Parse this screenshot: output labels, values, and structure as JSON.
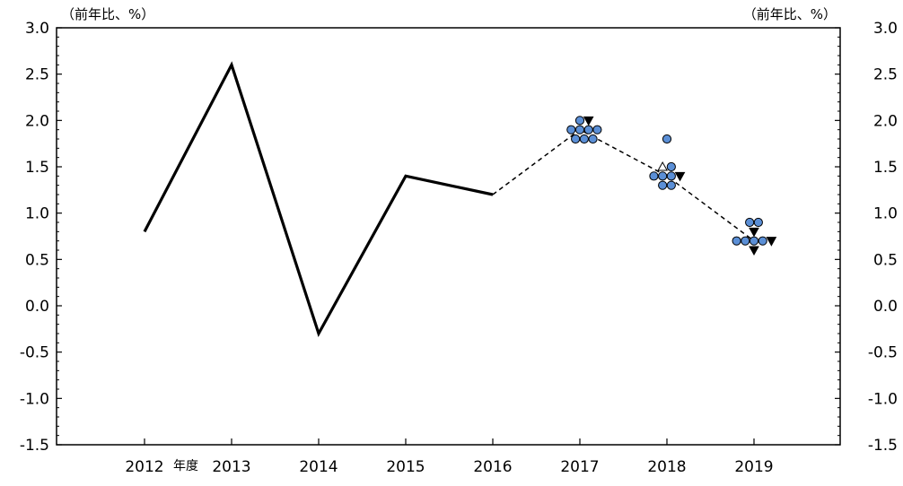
{
  "chart_data": {
    "type": "line",
    "title": "",
    "y_unit_left": "（前年比、%）",
    "y_unit_right": "（前年比、%）",
    "x_unit": "年度",
    "ylim": [
      -1.5,
      3.0
    ],
    "y_ticks": [
      3.0,
      2.5,
      2.0,
      1.5,
      1.0,
      0.5,
      0.0,
      -0.5,
      -1.0,
      -1.5
    ],
    "y_tick_labels": [
      "3.0",
      "2.5",
      "2.0",
      "1.5",
      "1.0",
      "0.5",
      "0.0",
      "-0.5",
      "-1.0",
      "-1.5"
    ],
    "categories": [
      "2012",
      "2013",
      "2014",
      "2015",
      "2016",
      "2017",
      "2018",
      "2019"
    ],
    "series": [
      {
        "style": "solid",
        "x": [
          "2012",
          "2013",
          "2014",
          "2015",
          "2016"
        ],
        "values": [
          0.8,
          2.6,
          -0.3,
          1.4,
          1.2
        ]
      },
      {
        "style": "dashed",
        "x": [
          "2016",
          "2017",
          "2018",
          "2019"
        ],
        "values": [
          1.2,
          1.9,
          1.4,
          0.7
        ]
      }
    ],
    "dots": [
      {
        "category": "2017",
        "offset": 0,
        "value": 2.0,
        "marker": "circle"
      },
      {
        "category": "2017",
        "offset": 1,
        "value": 2.0,
        "marker": "triangle-down"
      },
      {
        "category": "2017",
        "offset": -1,
        "value": 1.9,
        "marker": "circle"
      },
      {
        "category": "2017",
        "offset": 0,
        "value": 1.9,
        "marker": "circle"
      },
      {
        "category": "2017",
        "offset": 1,
        "value": 1.9,
        "marker": "circle"
      },
      {
        "category": "2017",
        "offset": 2,
        "value": 1.9,
        "marker": "circle"
      },
      {
        "category": "2017",
        "offset": -0.5,
        "value": 1.8,
        "marker": "circle"
      },
      {
        "category": "2017",
        "offset": 0.5,
        "value": 1.8,
        "marker": "circle"
      },
      {
        "category": "2017",
        "offset": 1.5,
        "value": 1.8,
        "marker": "circle"
      },
      {
        "category": "2018",
        "offset": 0,
        "value": 1.8,
        "marker": "circle"
      },
      {
        "category": "2018",
        "offset": -0.5,
        "value": 1.5,
        "marker": "triangle-up"
      },
      {
        "category": "2018",
        "offset": 0.5,
        "value": 1.5,
        "marker": "circle"
      },
      {
        "category": "2018",
        "offset": -1.5,
        "value": 1.4,
        "marker": "circle"
      },
      {
        "category": "2018",
        "offset": -0.5,
        "value": 1.4,
        "marker": "circle"
      },
      {
        "category": "2018",
        "offset": 0.5,
        "value": 1.4,
        "marker": "circle"
      },
      {
        "category": "2018",
        "offset": 1.5,
        "value": 1.4,
        "marker": "triangle-down"
      },
      {
        "category": "2018",
        "offset": -0.5,
        "value": 1.3,
        "marker": "circle"
      },
      {
        "category": "2018",
        "offset": 0.5,
        "value": 1.3,
        "marker": "circle"
      },
      {
        "category": "2019",
        "offset": -0.5,
        "value": 0.9,
        "marker": "circle"
      },
      {
        "category": "2019",
        "offset": 0.5,
        "value": 0.9,
        "marker": "circle"
      },
      {
        "category": "2019",
        "offset": 0,
        "value": 0.8,
        "marker": "triangle-down"
      },
      {
        "category": "2019",
        "offset": -2,
        "value": 0.7,
        "marker": "circle"
      },
      {
        "category": "2019",
        "offset": -1,
        "value": 0.7,
        "marker": "circle"
      },
      {
        "category": "2019",
        "offset": 0,
        "value": 0.7,
        "marker": "circle"
      },
      {
        "category": "2019",
        "offset": 1,
        "value": 0.7,
        "marker": "circle"
      },
      {
        "category": "2019",
        "offset": 2,
        "value": 0.7,
        "marker": "triangle-down"
      },
      {
        "category": "2019",
        "offset": 0,
        "value": 0.6,
        "marker": "triangle-down"
      }
    ],
    "colors": {
      "circle_fill": "#5b8fd6",
      "marker_stroke": "#000000",
      "line": "#000000"
    },
    "grid": false,
    "legend": "none"
  }
}
